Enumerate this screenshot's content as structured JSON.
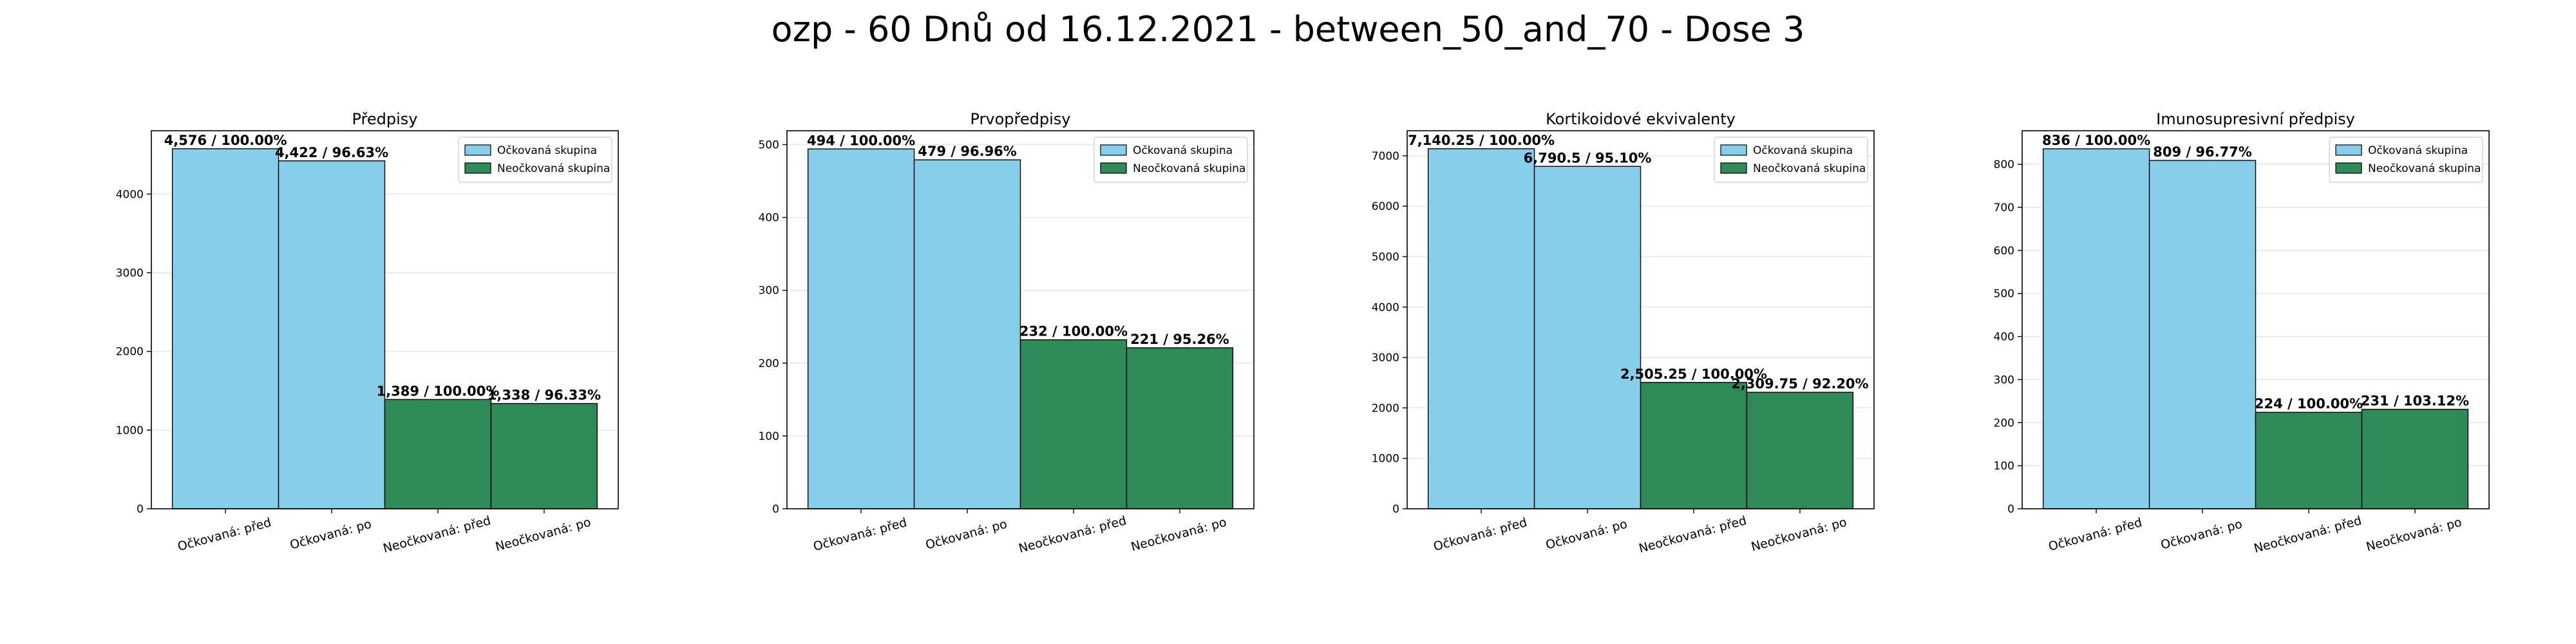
{
  "title": "ozp - 60 Dnů od 16.12.2021 - between_50_and_70 - Dose 3",
  "colors": {
    "vaccinated": "#87ceeb",
    "unvaccinated": "#2e8b57",
    "edge": "#000000"
  },
  "chart_data": [
    {
      "type": "bar",
      "title": "Předpisy",
      "categories": [
        "Očkovaná: před",
        "Očkovaná: po",
        "Neočkovaná: před",
        "Neočkovaná: po"
      ],
      "values": [
        4576,
        4422,
        1389,
        1338
      ],
      "labels": [
        "4,576 / 100.00%",
        "4,422 / 96.63%",
        "1,389 / 100.00%",
        "1,338 / 96.33%"
      ],
      "groups": [
        "vaccinated",
        "vaccinated",
        "unvaccinated",
        "unvaccinated"
      ],
      "legend": [
        "Očkovaná skupina",
        "Neočkovaná skupina"
      ],
      "legend_position": "top-right",
      "yticks": [
        0,
        1000,
        2000,
        3000,
        4000
      ],
      "ylim": [
        0,
        4805
      ],
      "grid": true
    },
    {
      "type": "bar",
      "title": "Prvopředpisy",
      "categories": [
        "Očkovaná: před",
        "Očkovaná: po",
        "Neočkovaná: před",
        "Neočkovaná: po"
      ],
      "values": [
        494,
        479,
        232,
        221
      ],
      "labels": [
        "494 / 100.00%",
        "479 / 96.96%",
        "232 / 100.00%",
        "221 / 95.26%"
      ],
      "groups": [
        "vaccinated",
        "vaccinated",
        "unvaccinated",
        "unvaccinated"
      ],
      "legend": [
        "Očkovaná skupina",
        "Neočkovaná skupina"
      ],
      "legend_position": "top-right",
      "yticks": [
        0,
        100,
        200,
        300,
        400,
        500
      ],
      "ylim": [
        0,
        519
      ],
      "grid": true
    },
    {
      "type": "bar",
      "title": "Kortikoidové ekvivalenty",
      "categories": [
        "Očkovaná: před",
        "Očkovaná: po",
        "Neočkovaná: před",
        "Neočkovaná: po"
      ],
      "values": [
        7140.25,
        6790.5,
        2505.25,
        2309.75
      ],
      "labels": [
        "7,140.25 / 100.00%",
        "6,790.5 / 95.10%",
        "2,505.25 / 100.00%",
        "2,309.75 / 92.20%"
      ],
      "groups": [
        "vaccinated",
        "vaccinated",
        "unvaccinated",
        "unvaccinated"
      ],
      "legend": [
        "Očkovaná skupina",
        "Neočkovaná skupina"
      ],
      "legend_position": "top-right",
      "yticks": [
        0,
        1000,
        2000,
        3000,
        4000,
        5000,
        6000,
        7000
      ],
      "ylim": [
        0,
        7497
      ],
      "grid": true
    },
    {
      "type": "bar",
      "title": "Imunosupresivní předpisy",
      "categories": [
        "Očkovaná: před",
        "Očkovaná: po",
        "Neočkovaná: před",
        "Neočkovaná: po"
      ],
      "values": [
        836,
        809,
        224,
        231
      ],
      "labels": [
        "836 / 100.00%",
        "809 / 96.77%",
        "224 / 100.00%",
        "231 / 103.12%"
      ],
      "groups": [
        "vaccinated",
        "vaccinated",
        "unvaccinated",
        "unvaccinated"
      ],
      "legend": [
        "Očkovaná skupina",
        "Neočkovaná skupina"
      ],
      "legend_position": "top-right",
      "yticks": [
        0,
        100,
        200,
        300,
        400,
        500,
        600,
        700,
        800
      ],
      "ylim": [
        0,
        878
      ],
      "grid": true
    }
  ]
}
